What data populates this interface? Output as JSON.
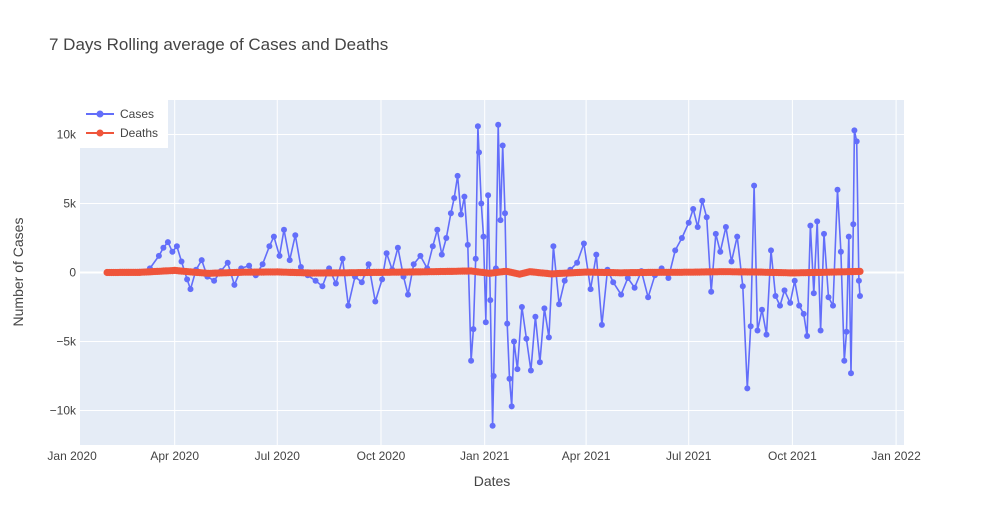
{
  "chart_data": {
    "type": "line",
    "title": "7 Days Rolling average of Cases and Deaths",
    "xlabel": "Dates",
    "ylabel": "Number of Cases",
    "x_range": [
      "2020-01-08",
      "2022-01-08"
    ],
    "xlim_days_note": "",
    "ylim": [
      -12500,
      12500
    ],
    "x_ticks": [
      {
        "date": "2020-01-01",
        "label": "Jan 2020"
      },
      {
        "date": "2020-04-01",
        "label": "Apr 2020"
      },
      {
        "date": "2020-07-01",
        "label": "Jul 2020"
      },
      {
        "date": "2020-10-01",
        "label": "Oct 2020"
      },
      {
        "date": "2021-01-01",
        "label": "Jan 2021"
      },
      {
        "date": "2021-04-01",
        "label": "Apr 2021"
      },
      {
        "date": "2021-07-01",
        "label": "Jul 2021"
      },
      {
        "date": "2021-10-01",
        "label": "Oct 2021"
      },
      {
        "date": "2022-01-01",
        "label": "Jan 2022"
      }
    ],
    "y_ticks": [
      {
        "value": 10000,
        "label": "10k"
      },
      {
        "value": 5000,
        "label": "5k"
      },
      {
        "value": 0,
        "label": "0"
      },
      {
        "value": -5000,
        "label": "−5k"
      },
      {
        "value": -10000,
        "label": "−10k"
      }
    ],
    "grid": true,
    "legend_position": "top-left",
    "series": [
      {
        "name": "Cases",
        "color": "#636efa",
        "points": [
          [
            "2020-02-01",
            0
          ],
          [
            "2020-02-15",
            0
          ],
          [
            "2020-03-01",
            50
          ],
          [
            "2020-03-10",
            300
          ],
          [
            "2020-03-18",
            1200
          ],
          [
            "2020-03-22",
            1800
          ],
          [
            "2020-03-26",
            2200
          ],
          [
            "2020-03-30",
            1500
          ],
          [
            "2020-04-03",
            1900
          ],
          [
            "2020-04-07",
            800
          ],
          [
            "2020-04-12",
            -500
          ],
          [
            "2020-04-15",
            -1200
          ],
          [
            "2020-04-20",
            200
          ],
          [
            "2020-04-25",
            900
          ],
          [
            "2020-04-30",
            -300
          ],
          [
            "2020-05-06",
            -600
          ],
          [
            "2020-05-12",
            100
          ],
          [
            "2020-05-18",
            700
          ],
          [
            "2020-05-24",
            -900
          ],
          [
            "2020-05-30",
            300
          ],
          [
            "2020-06-06",
            500
          ],
          [
            "2020-06-12",
            -200
          ],
          [
            "2020-06-18",
            600
          ],
          [
            "2020-06-24",
            1900
          ],
          [
            "2020-06-28",
            2600
          ],
          [
            "2020-07-03",
            1200
          ],
          [
            "2020-07-07",
            3100
          ],
          [
            "2020-07-12",
            900
          ],
          [
            "2020-07-17",
            2700
          ],
          [
            "2020-07-22",
            400
          ],
          [
            "2020-07-28",
            -200
          ],
          [
            "2020-08-04",
            -600
          ],
          [
            "2020-08-10",
            -1000
          ],
          [
            "2020-08-16",
            300
          ],
          [
            "2020-08-22",
            -800
          ],
          [
            "2020-08-28",
            1000
          ],
          [
            "2020-09-02",
            -2400
          ],
          [
            "2020-09-08",
            -300
          ],
          [
            "2020-09-14",
            -700
          ],
          [
            "2020-09-20",
            600
          ],
          [
            "2020-09-26",
            -2100
          ],
          [
            "2020-10-02",
            -500
          ],
          [
            "2020-10-06",
            1400
          ],
          [
            "2020-10-11",
            200
          ],
          [
            "2020-10-16",
            1800
          ],
          [
            "2020-10-21",
            -300
          ],
          [
            "2020-10-25",
            -1600
          ],
          [
            "2020-10-30",
            600
          ],
          [
            "2020-11-05",
            1200
          ],
          [
            "2020-11-11",
            300
          ],
          [
            "2020-11-16",
            1900
          ],
          [
            "2020-11-20",
            3100
          ],
          [
            "2020-11-24",
            1300
          ],
          [
            "2020-11-28",
            2500
          ],
          [
            "2020-12-02",
            4300
          ],
          [
            "2020-12-05",
            5400
          ],
          [
            "2020-12-08",
            7000
          ],
          [
            "2020-12-11",
            4200
          ],
          [
            "2020-12-14",
            5500
          ],
          [
            "2020-12-17",
            2000
          ],
          [
            "2020-12-20",
            -6400
          ],
          [
            "2020-12-22",
            -4100
          ],
          [
            "2020-12-24",
            1000
          ],
          [
            "2020-12-26",
            10600
          ],
          [
            "2020-12-27",
            8700
          ],
          [
            "2020-12-29",
            5000
          ],
          [
            "2020-12-31",
            2600
          ],
          [
            "2021-01-02",
            -3600
          ],
          [
            "2021-01-04",
            5600
          ],
          [
            "2021-01-06",
            -2000
          ],
          [
            "2021-01-08",
            -11100
          ],
          [
            "2021-01-09",
            -7500
          ],
          [
            "2021-01-11",
            300
          ],
          [
            "2021-01-13",
            10700
          ],
          [
            "2021-01-15",
            3800
          ],
          [
            "2021-01-17",
            9200
          ],
          [
            "2021-01-19",
            4300
          ],
          [
            "2021-01-21",
            -3700
          ],
          [
            "2021-01-23",
            -7700
          ],
          [
            "2021-01-25",
            -9700
          ],
          [
            "2021-01-27",
            -5000
          ],
          [
            "2021-01-30",
            -7000
          ],
          [
            "2021-02-03",
            -2500
          ],
          [
            "2021-02-07",
            -4800
          ],
          [
            "2021-02-11",
            -7100
          ],
          [
            "2021-02-15",
            -3200
          ],
          [
            "2021-02-19",
            -6500
          ],
          [
            "2021-02-23",
            -2600
          ],
          [
            "2021-02-27",
            -4700
          ],
          [
            "2021-03-03",
            1900
          ],
          [
            "2021-03-08",
            -2300
          ],
          [
            "2021-03-13",
            -600
          ],
          [
            "2021-03-18",
            200
          ],
          [
            "2021-03-24",
            700
          ],
          [
            "2021-03-30",
            2100
          ],
          [
            "2021-04-05",
            -1200
          ],
          [
            "2021-04-10",
            1300
          ],
          [
            "2021-04-15",
            -3800
          ],
          [
            "2021-04-20",
            200
          ],
          [
            "2021-04-25",
            -700
          ],
          [
            "2021-05-02",
            -1600
          ],
          [
            "2021-05-08",
            -400
          ],
          [
            "2021-05-14",
            -1100
          ],
          [
            "2021-05-20",
            100
          ],
          [
            "2021-05-26",
            -1800
          ],
          [
            "2021-06-01",
            -200
          ],
          [
            "2021-06-07",
            300
          ],
          [
            "2021-06-13",
            -400
          ],
          [
            "2021-06-19",
            1600
          ],
          [
            "2021-06-25",
            2500
          ],
          [
            "2021-07-01",
            3600
          ],
          [
            "2021-07-05",
            4600
          ],
          [
            "2021-07-09",
            3300
          ],
          [
            "2021-07-13",
            5200
          ],
          [
            "2021-07-17",
            4000
          ],
          [
            "2021-07-21",
            -1400
          ],
          [
            "2021-07-25",
            2800
          ],
          [
            "2021-07-29",
            1500
          ],
          [
            "2021-08-03",
            3300
          ],
          [
            "2021-08-08",
            800
          ],
          [
            "2021-08-13",
            2600
          ],
          [
            "2021-08-18",
            -1000
          ],
          [
            "2021-08-22",
            -8400
          ],
          [
            "2021-08-25",
            -3900
          ],
          [
            "2021-08-28",
            6300
          ],
          [
            "2021-08-31",
            -4200
          ],
          [
            "2021-09-04",
            -2700
          ],
          [
            "2021-09-08",
            -4500
          ],
          [
            "2021-09-12",
            1600
          ],
          [
            "2021-09-16",
            -1700
          ],
          [
            "2021-09-20",
            -2400
          ],
          [
            "2021-09-24",
            -1300
          ],
          [
            "2021-09-29",
            -2200
          ],
          [
            "2021-10-03",
            -600
          ],
          [
            "2021-10-07",
            -2400
          ],
          [
            "2021-10-11",
            -3000
          ],
          [
            "2021-10-14",
            -4600
          ],
          [
            "2021-10-17",
            3400
          ],
          [
            "2021-10-20",
            -1500
          ],
          [
            "2021-10-23",
            3700
          ],
          [
            "2021-10-26",
            -4200
          ],
          [
            "2021-10-29",
            2800
          ],
          [
            "2021-11-02",
            -1800
          ],
          [
            "2021-11-06",
            -2400
          ],
          [
            "2021-11-10",
            6000
          ],
          [
            "2021-11-13",
            1500
          ],
          [
            "2021-11-16",
            -6400
          ],
          [
            "2021-11-18",
            -4300
          ],
          [
            "2021-11-20",
            2600
          ],
          [
            "2021-11-22",
            -7300
          ],
          [
            "2021-11-24",
            3500
          ],
          [
            "2021-11-25",
            10300
          ],
          [
            "2021-11-27",
            9500
          ],
          [
            "2021-11-29",
            -600
          ],
          [
            "2021-11-30",
            -1700
          ]
        ]
      },
      {
        "name": "Deaths",
        "color": "#ef553b",
        "points": [
          [
            "2020-02-01",
            0
          ],
          [
            "2020-03-01",
            10
          ],
          [
            "2020-04-01",
            150
          ],
          [
            "2020-04-15",
            40
          ],
          [
            "2020-05-01",
            -60
          ],
          [
            "2020-06-01",
            20
          ],
          [
            "2020-07-01",
            40
          ],
          [
            "2020-08-01",
            -40
          ],
          [
            "2020-09-01",
            -20
          ],
          [
            "2020-10-01",
            10
          ],
          [
            "2020-11-01",
            40
          ],
          [
            "2020-12-01",
            80
          ],
          [
            "2020-12-20",
            110
          ],
          [
            "2021-01-05",
            -60
          ],
          [
            "2021-01-20",
            90
          ],
          [
            "2021-02-01",
            -120
          ],
          [
            "2021-02-10",
            60
          ],
          [
            "2021-03-01",
            -100
          ],
          [
            "2021-04-01",
            30
          ],
          [
            "2021-05-01",
            -20
          ],
          [
            "2021-06-01",
            10
          ],
          [
            "2021-07-01",
            20
          ],
          [
            "2021-08-01",
            60
          ],
          [
            "2021-09-01",
            30
          ],
          [
            "2021-10-01",
            -30
          ],
          [
            "2021-11-01",
            20
          ],
          [
            "2021-11-30",
            80
          ]
        ]
      }
    ]
  }
}
